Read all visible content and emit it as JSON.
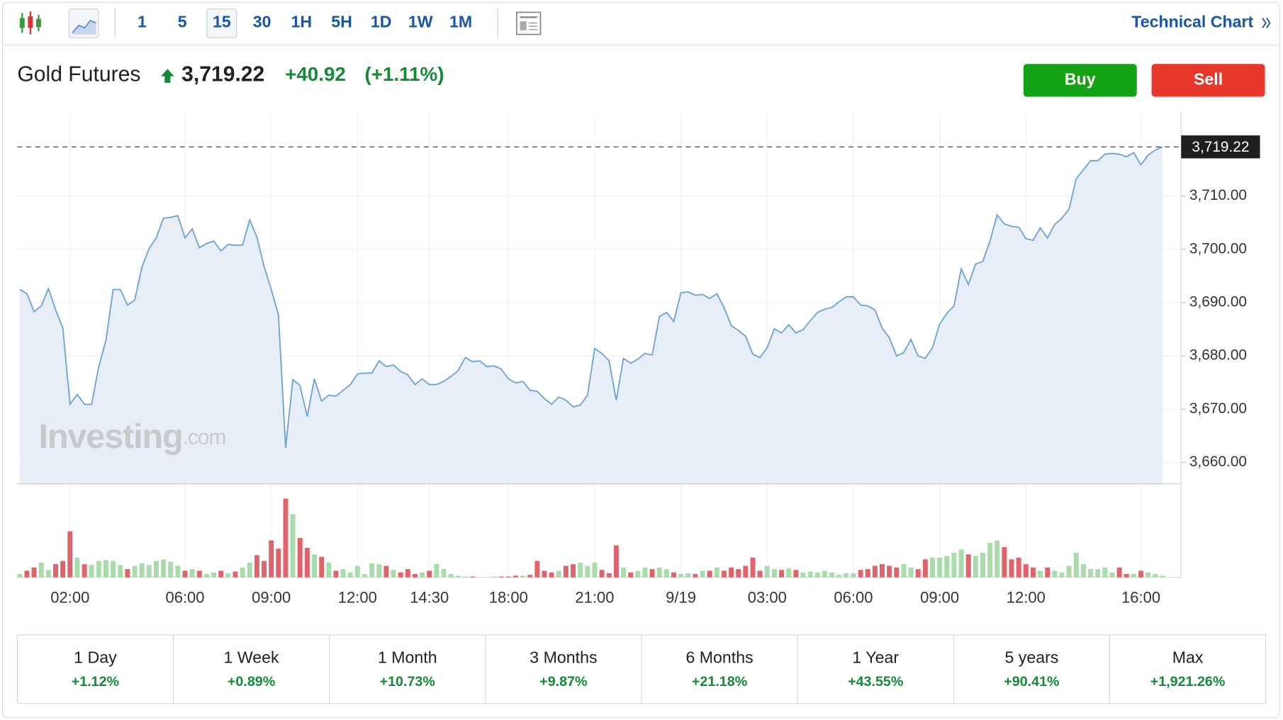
{
  "toolbar": {
    "intervals": [
      "1",
      "5",
      "15",
      "30",
      "1H",
      "5H",
      "1D",
      "1W",
      "1M"
    ],
    "active_interval": 2,
    "technical_chart": "Technical Chart"
  },
  "header": {
    "name": "Gold Futures",
    "price": "3,719.22",
    "change": "+40.92",
    "change_pct": "(+1.11%)"
  },
  "buttons": {
    "buy": "Buy",
    "sell": "Sell"
  },
  "watermark": {
    "brand": "Investing",
    "suffix": ".com"
  },
  "chart_data": {
    "type": "line",
    "categories": [
      null,
      null,
      null,
      null,
      null,
      null,
      null,
      "02:00",
      null,
      null,
      null,
      null,
      null,
      null,
      null,
      null,
      null,
      null,
      null,
      null,
      null,
      null,
      null,
      "06:00",
      null,
      null,
      null,
      null,
      null,
      null,
      null,
      null,
      null,
      null,
      null,
      "09:00",
      null,
      null,
      null,
      null,
      null,
      null,
      null,
      null,
      null,
      null,
      null,
      "12:00",
      null,
      null,
      null,
      null,
      null,
      null,
      null,
      null,
      null,
      "14:30",
      null,
      null,
      null,
      null,
      null,
      null,
      null,
      null,
      null,
      null,
      "18:00",
      null,
      null,
      null,
      null,
      null,
      null,
      null,
      null,
      null,
      null,
      null,
      "21:00",
      null,
      null,
      null,
      null,
      null,
      null,
      null,
      null,
      null,
      null,
      null,
      "9/19",
      null,
      null,
      null,
      null,
      null,
      null,
      null,
      null,
      null,
      null,
      null,
      "03:00",
      null,
      null,
      null,
      null,
      null,
      null,
      null,
      null,
      null,
      null,
      null,
      "06:00",
      null,
      null,
      null,
      null,
      null,
      null,
      null,
      null,
      null,
      null,
      null,
      "09:00",
      null,
      null,
      null,
      null,
      null,
      null,
      null,
      null,
      null,
      null,
      null,
      "12:00",
      null,
      null,
      null,
      null,
      null,
      null,
      null,
      null,
      null,
      null,
      null,
      null,
      null,
      null,
      null,
      "16:00",
      null,
      null,
      null
    ],
    "series": [
      {
        "color": "#6fa3d6",
        "fill": "#e7eef8",
        "values": [
          3692.46,
          3691.69,
          3688.31,
          3689.38,
          3692.62,
          3688.62,
          3685.23,
          3670.92,
          3672.77,
          3670.92,
          3670.92,
          3678.0,
          3682.92,
          3692.46,
          3692.46,
          3689.54,
          3690.46,
          3696.62,
          3700.15,
          3702.15,
          3705.85,
          3706.0,
          3706.31,
          3702.15,
          3703.85,
          3700.31,
          3701.08,
          3701.54,
          3699.69,
          3700.92,
          3700.77,
          3700.77,
          3705.54,
          3702.31,
          3696.77,
          3692.46,
          3687.69,
          3662.77,
          3675.54,
          3674.46,
          3668.62,
          3675.69,
          3671.54,
          3672.62,
          3672.46,
          3673.54,
          3674.62,
          3676.62,
          3676.77,
          3676.77,
          3679.08,
          3678.0,
          3678.31,
          3677.08,
          3676.46,
          3674.62,
          3675.69,
          3674.62,
          3674.62,
          3675.23,
          3676.15,
          3677.23,
          3679.69,
          3678.92,
          3679.08,
          3678.0,
          3678.15,
          3677.54,
          3675.69,
          3674.92,
          3675.23,
          3673.54,
          3673.38,
          3672.0,
          3670.92,
          3672.31,
          3671.69,
          3670.46,
          3670.77,
          3672.62,
          3681.38,
          3680.46,
          3679.08,
          3671.69,
          3679.54,
          3678.62,
          3679.38,
          3680.46,
          3680.15,
          3687.38,
          3688.15,
          3686.46,
          3691.85,
          3692.0,
          3691.38,
          3691.54,
          3690.77,
          3691.69,
          3689.08,
          3685.69,
          3684.77,
          3683.69,
          3680.31,
          3679.69,
          3681.54,
          3685.08,
          3684.31,
          3685.85,
          3684.31,
          3684.92,
          3686.62,
          3688.15,
          3688.77,
          3689.08,
          3690.15,
          3691.08,
          3691.08,
          3689.54,
          3689.38,
          3688.62,
          3685.23,
          3683.38,
          3680.0,
          3680.62,
          3683.08,
          3680.0,
          3679.54,
          3681.54,
          3686.0,
          3688.0,
          3689.38,
          3696.31,
          3693.38,
          3697.23,
          3697.69,
          3701.54,
          3706.46,
          3704.77,
          3704.31,
          3704.15,
          3702.0,
          3701.69,
          3704.0,
          3702.15,
          3704.62,
          3705.85,
          3707.54,
          3713.23,
          3714.92,
          3716.62,
          3716.62,
          3717.85,
          3718.0,
          3717.85,
          3717.38,
          3718.15,
          3715.85,
          3717.69,
          3718.62,
          3719.22
        ]
      }
    ],
    "ylim": [
      3656,
      3725.7
    ],
    "yticks": [
      {
        "value": 3660,
        "label": "3,660.00"
      },
      {
        "value": 3670,
        "label": "3,670.00"
      },
      {
        "value": 3680,
        "label": "3,680.00"
      },
      {
        "value": 3690,
        "label": "3,690.00"
      },
      {
        "value": 3700,
        "label": "3,700.00"
      },
      {
        "value": 3710,
        "label": "3,710.00"
      }
    ],
    "grid": true,
    "last_price": {
      "value": 3719.22,
      "label": "3,719.22"
    },
    "volume": {
      "up_color": "#a9dcab",
      "down_color": "#e0636b",
      "ylim": [
        0,
        100
      ],
      "values": [
        4,
        8,
        12,
        18,
        9,
        16,
        20,
        56,
        24,
        16,
        15,
        20,
        21,
        20,
        15,
        10,
        14,
        17,
        15,
        20,
        22,
        19,
        14,
        8,
        10,
        8,
        4,
        6,
        8,
        5,
        7,
        12,
        18,
        27,
        20,
        45,
        35,
        96,
        77,
        48,
        36,
        28,
        25,
        18,
        8,
        10,
        6,
        14,
        4,
        17,
        16,
        14,
        9,
        6,
        10,
        4,
        6,
        8,
        16,
        10,
        4,
        2,
        1,
        1,
        0,
        0,
        1,
        1,
        1,
        2,
        2,
        3,
        20,
        8,
        6,
        8,
        14,
        16,
        18,
        14,
        18,
        9,
        5,
        39,
        12,
        6,
        8,
        12,
        10,
        12,
        10,
        6,
        4,
        5,
        4,
        8,
        8,
        12,
        8,
        12,
        10,
        14,
        24,
        8,
        14,
        10,
        9,
        11,
        9,
        6,
        7,
        6,
        8,
        6,
        3,
        5,
        5,
        9,
        10,
        14,
        16,
        14,
        12,
        16,
        12,
        10,
        22,
        24,
        24,
        26,
        30,
        34,
        28,
        26,
        30,
        42,
        45,
        37,
        22,
        24,
        16,
        12,
        8,
        12,
        8,
        6,
        14,
        30,
        16,
        10,
        10,
        12,
        6,
        12,
        4,
        4,
        8,
        6,
        4,
        2
      ]
    }
  },
  "periods": [
    {
      "label": "1 Day",
      "change": "+1.12%"
    },
    {
      "label": "1 Week",
      "change": "+0.89%"
    },
    {
      "label": "1 Month",
      "change": "+10.73%"
    },
    {
      "label": "3 Months",
      "change": "+9.87%"
    },
    {
      "label": "6 Months",
      "change": "+21.18%"
    },
    {
      "label": "1 Year",
      "change": "+43.55%"
    },
    {
      "label": "5 years",
      "change": "+90.41%"
    },
    {
      "label": "Max",
      "change": "+1,921.26%"
    }
  ]
}
